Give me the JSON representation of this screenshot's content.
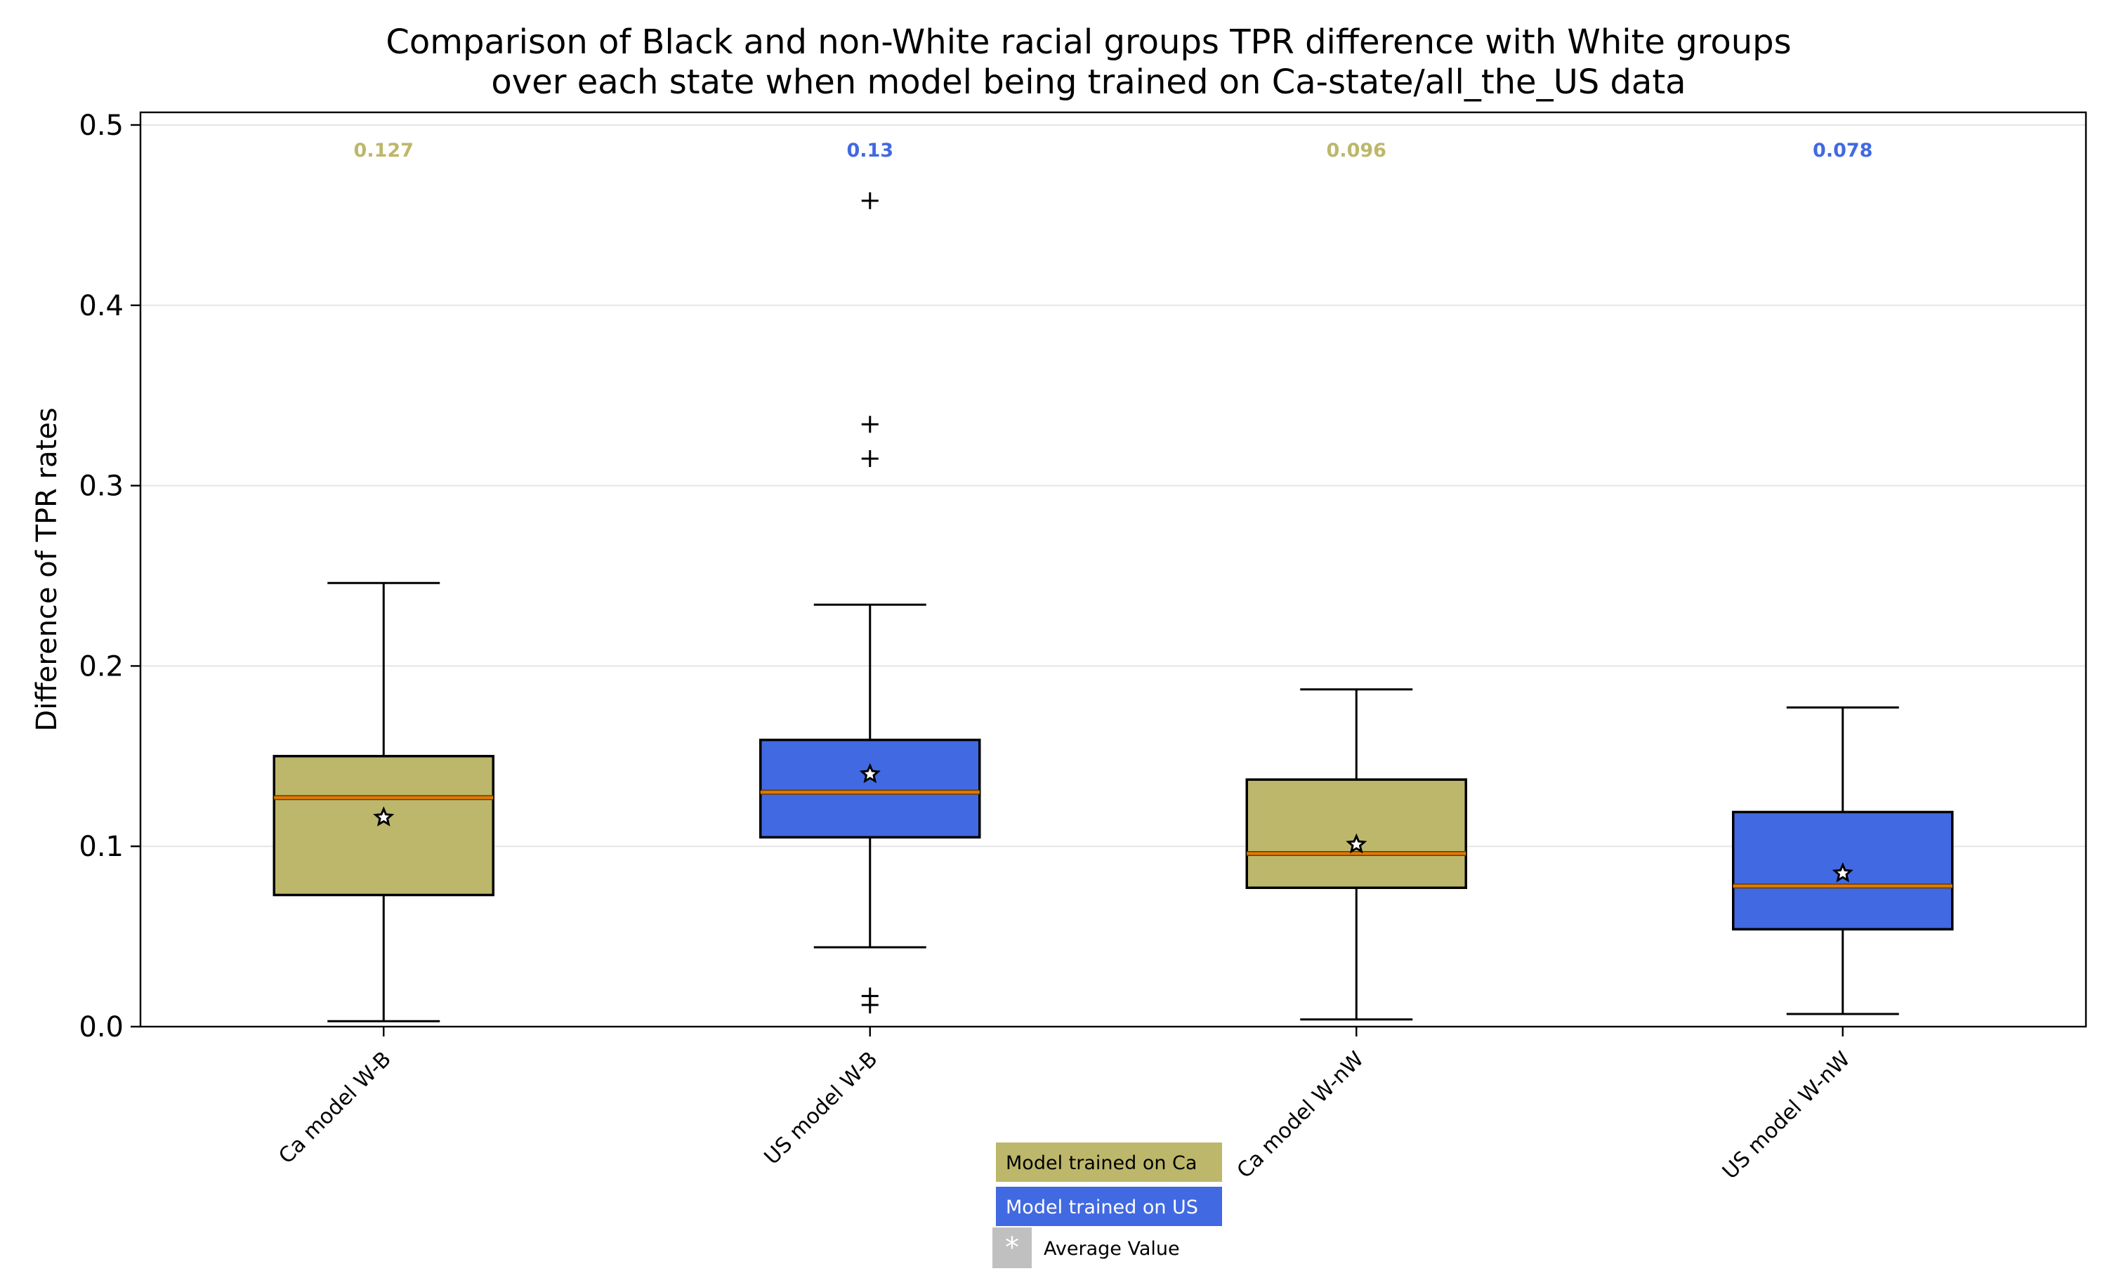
{
  "chart_data": {
    "type": "boxplot",
    "title_lines": [
      "Comparison of Black and non-White racial groups TPR difference with White groups",
      "over each state when model being trained on Ca-state/all_the_US data"
    ],
    "ylabel": "Difference of TPR rates",
    "xlabel": "",
    "ylim": [
      0.0,
      0.5
    ],
    "yticks": [
      {
        "value": 0.0,
        "label": "0.0"
      },
      {
        "value": 0.1,
        "label": "0.1"
      },
      {
        "value": 0.2,
        "label": "0.2"
      },
      {
        "value": 0.3,
        "label": "0.3"
      },
      {
        "value": 0.4,
        "label": "0.4"
      },
      {
        "value": 0.5,
        "label": "0.5"
      }
    ],
    "grid": "horizontal",
    "categories": [
      "Ca model W-B",
      "US model W-B",
      "Ca model W-nW",
      "US model W-nW"
    ],
    "boxes": [
      {
        "category": "Ca model W-B",
        "group": "ca",
        "whisker_low": 0.003,
        "q1": 0.073,
        "median": 0.127,
        "q3": 0.15,
        "whisker_high": 0.246,
        "mean": 0.116,
        "outliers": [],
        "median_label": "0.127"
      },
      {
        "category": "US model W-B",
        "group": "us",
        "whisker_low": 0.044,
        "q1": 0.105,
        "median": 0.13,
        "q3": 0.159,
        "whisker_high": 0.234,
        "mean": 0.14,
        "outliers": [
          0.012,
          0.017,
          0.315,
          0.334,
          0.458
        ],
        "median_label": "0.13"
      },
      {
        "category": "Ca model W-nW",
        "group": "ca",
        "whisker_low": 0.004,
        "q1": 0.077,
        "median": 0.096,
        "q3": 0.137,
        "whisker_high": 0.187,
        "mean": 0.101,
        "outliers": [],
        "median_label": "0.096"
      },
      {
        "category": "US model W-nW",
        "group": "us",
        "whisker_low": 0.007,
        "q1": 0.054,
        "median": 0.078,
        "q3": 0.119,
        "whisker_high": 0.177,
        "mean": 0.085,
        "outliers": [],
        "median_label": "0.078"
      }
    ],
    "colors": {
      "ca": "#bdb76b",
      "us": "#4169e1",
      "median_line": "#e07b00",
      "grid": "#e5e5e5",
      "legend_marker_box": "#c0c0c0"
    },
    "legend": {
      "placement": "bottom-center",
      "entries": [
        {
          "label": "Model trained on Ca",
          "group": "ca"
        },
        {
          "label": "Model trained on US",
          "group": "us"
        },
        {
          "label": "Average Value",
          "marker": "*"
        }
      ]
    }
  }
}
